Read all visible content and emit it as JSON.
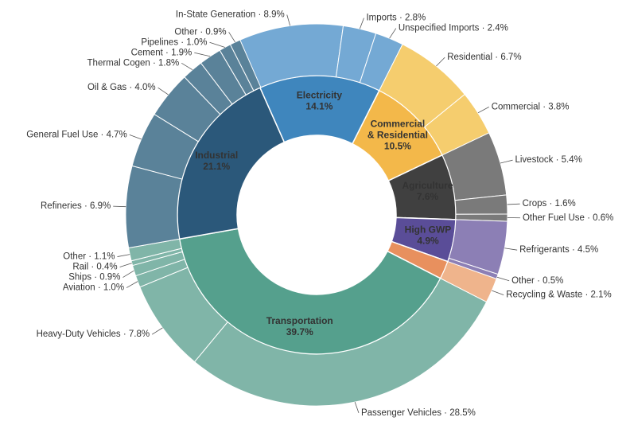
{
  "chart_data": {
    "type": "sunburst",
    "segments": [
      {
        "lines": [
          "Electricity"
        ],
        "value": 14.1,
        "value_label": "14.1%",
        "color": "#3f86bd",
        "outer_color": "#74a9d4",
        "label_color": "#ffffff",
        "children": [
          {
            "label": "In-State Generation · 8.9%",
            "value": 8.9
          },
          {
            "label": "Imports · 2.8%",
            "value": 2.8
          },
          {
            "label": "Unspecified Imports · 2.4%",
            "value": 2.4
          }
        ]
      },
      {
        "lines": [
          "Commercial",
          "& Residential"
        ],
        "value": 10.5,
        "value_label": "10.5%",
        "color": "#f3b84a",
        "outer_color": "#f5cd6e",
        "label_color": "#5a4418",
        "children": [
          {
            "label": "Residential · 6.7%",
            "value": 6.7
          },
          {
            "label": "Commercial · 3.8%",
            "value": 3.8
          }
        ]
      },
      {
        "lines": [
          "Agriculture"
        ],
        "value": 7.6,
        "value_label": "7.6%",
        "color": "#404040",
        "outer_color": "#7a7a7a",
        "label_color": "#ffffff",
        "children": [
          {
            "label": "Livestock · 5.4%",
            "value": 5.4
          },
          {
            "label": "Crops · 1.6%",
            "value": 1.6
          },
          {
            "label": "Other Fuel Use · 0.6%",
            "value": 0.6
          }
        ]
      },
      {
        "lines": [
          "High GWP"
        ],
        "value": 4.9,
        "value_label": "4.9%",
        "color": "#5a4d98",
        "outer_color": "#8c7fb5",
        "label_color": "#ffffff",
        "children": [
          {
            "label": "Refrigerants · 4.5%",
            "value": 4.5
          },
          {
            "label": "Other · 0.5%",
            "value": 0.5
          }
        ]
      },
      {
        "value": 2.1,
        "color": "#e8905e",
        "outer_color": "#efb48c",
        "children": [
          {
            "label": "Recycling & Waste · 2.1%",
            "value": 2.1
          }
        ]
      },
      {
        "lines": [
          "Transportation"
        ],
        "value": 39.7,
        "value_label": "39.7%",
        "color": "#55a08d",
        "outer_color": "#80b5a8",
        "label_color": "#ffffff",
        "children": [
          {
            "label": "Passenger Vehicles · 28.5%",
            "value": 28.5
          },
          {
            "label": "Heavy-Duty Vehicles · 7.8%",
            "value": 7.8
          },
          {
            "label": "Aviation · 1.0%",
            "value": 1.0
          },
          {
            "label": "Ships · 0.9%",
            "value": 0.9
          },
          {
            "label": "Rail · 0.4%",
            "value": 0.4
          },
          {
            "label": "Other · 1.1%",
            "value": 1.1
          }
        ]
      },
      {
        "lines": [
          "Industrial"
        ],
        "value": 21.1,
        "value_label": "21.1%",
        "color": "#2b587a",
        "outer_color": "#5a8299",
        "label_color": "#ffffff",
        "children": [
          {
            "label": "Refineries · 6.9%",
            "value": 6.9
          },
          {
            "label": "General Fuel Use · 4.7%",
            "value": 4.7
          },
          {
            "label": "Oil & Gas · 4.0%",
            "value": 4.0
          },
          {
            "label": "Thermal Cogen · 1.8%",
            "value": 1.8
          },
          {
            "label": "Cement · 1.9%",
            "value": 1.9
          },
          {
            "label": "Pipelines · 1.0%",
            "value": 1.0
          },
          {
            "label": "Other · 0.9%",
            "value": 0.9
          }
        ]
      }
    ]
  }
}
